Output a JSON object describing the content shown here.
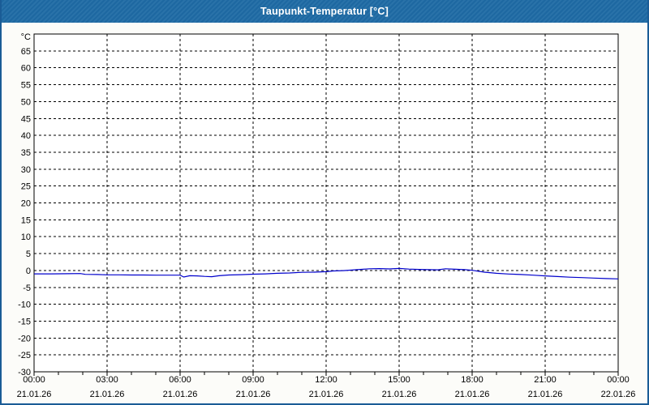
{
  "window": {
    "title": "Taupunkt-Temperatur [°C]",
    "titlebar_color": "#1e6aa4",
    "border_color": "#1a5c96",
    "background_color": "#fcfcf9"
  },
  "chart_data": {
    "type": "line",
    "title": "Taupunkt-Temperatur [°C]",
    "ylabel": "°C",
    "xlabel": "",
    "ylim": [
      -30,
      70
    ],
    "ytick_step": 5,
    "yticks": [
      65,
      60,
      55,
      50,
      45,
      40,
      35,
      30,
      25,
      20,
      15,
      10,
      5,
      0,
      -5,
      -10,
      -15,
      -20,
      -25,
      -30
    ],
    "grid": "dashed",
    "gridline_color": "#000000",
    "plot_background": "#ffffff",
    "x_range_hours": [
      0,
      24
    ],
    "minor_tick_every_hours": 1,
    "xticks": [
      {
        "hour": 0,
        "time": "00:00",
        "date": "21.01.26"
      },
      {
        "hour": 3,
        "time": "03:00",
        "date": "21.01.26"
      },
      {
        "hour": 6,
        "time": "06:00",
        "date": "21.01.26"
      },
      {
        "hour": 9,
        "time": "09:00",
        "date": "21.01.26"
      },
      {
        "hour": 12,
        "time": "12:00",
        "date": "21.01.26"
      },
      {
        "hour": 15,
        "time": "15:00",
        "date": "21.01.26"
      },
      {
        "hour": 18,
        "time": "18:00",
        "date": "21.01.26"
      },
      {
        "hour": 21,
        "time": "21:00",
        "date": "21.01.26"
      },
      {
        "hour": 24,
        "time": "00:00",
        "date": "22.01.26"
      }
    ],
    "series": [
      {
        "name": "Taupunkt-Temperatur",
        "color": "#0000cc",
        "points": [
          [
            0,
            -1.0
          ],
          [
            0.7,
            -1.0
          ],
          [
            1.4,
            -0.95
          ],
          [
            1.9,
            -0.9
          ],
          [
            2.1,
            -1.15
          ],
          [
            2.6,
            -1.2
          ],
          [
            3,
            -1.3
          ],
          [
            3.5,
            -1.3
          ],
          [
            4,
            -1.35
          ],
          [
            4.5,
            -1.35
          ],
          [
            5,
            -1.4
          ],
          [
            5.5,
            -1.4
          ],
          [
            6,
            -1.4
          ],
          [
            6.15,
            -1.95
          ],
          [
            6.4,
            -1.55
          ],
          [
            6.7,
            -1.6
          ],
          [
            7,
            -1.75
          ],
          [
            7.3,
            -1.85
          ],
          [
            7.6,
            -1.55
          ],
          [
            8,
            -1.35
          ],
          [
            8.5,
            -1.25
          ],
          [
            9,
            -1.1
          ],
          [
            9.5,
            -1.0
          ],
          [
            10,
            -0.85
          ],
          [
            10.5,
            -0.75
          ],
          [
            11,
            -0.55
          ],
          [
            11.5,
            -0.5
          ],
          [
            12,
            -0.35
          ],
          [
            12.3,
            -0.15
          ],
          [
            12.7,
            -0.05
          ],
          [
            13,
            0.1
          ],
          [
            13.4,
            0.3
          ],
          [
            13.8,
            0.5
          ],
          [
            14.2,
            0.55
          ],
          [
            14.6,
            0.45
          ],
          [
            15,
            0.6
          ],
          [
            15.4,
            0.4
          ],
          [
            15.8,
            0.3
          ],
          [
            16.2,
            0.25
          ],
          [
            16.6,
            0.2
          ],
          [
            16.9,
            0.5
          ],
          [
            17.3,
            0.35
          ],
          [
            17.7,
            0.25
          ],
          [
            18,
            0.05
          ],
          [
            18.5,
            -0.5
          ],
          [
            19,
            -0.85
          ],
          [
            19.5,
            -1.05
          ],
          [
            20,
            -1.2
          ],
          [
            20.5,
            -1.4
          ],
          [
            21,
            -1.6
          ],
          [
            21.5,
            -1.8
          ],
          [
            22,
            -2.0
          ],
          [
            22.5,
            -2.1
          ],
          [
            23,
            -2.25
          ],
          [
            23.5,
            -2.4
          ],
          [
            24,
            -2.5
          ]
        ]
      }
    ]
  }
}
